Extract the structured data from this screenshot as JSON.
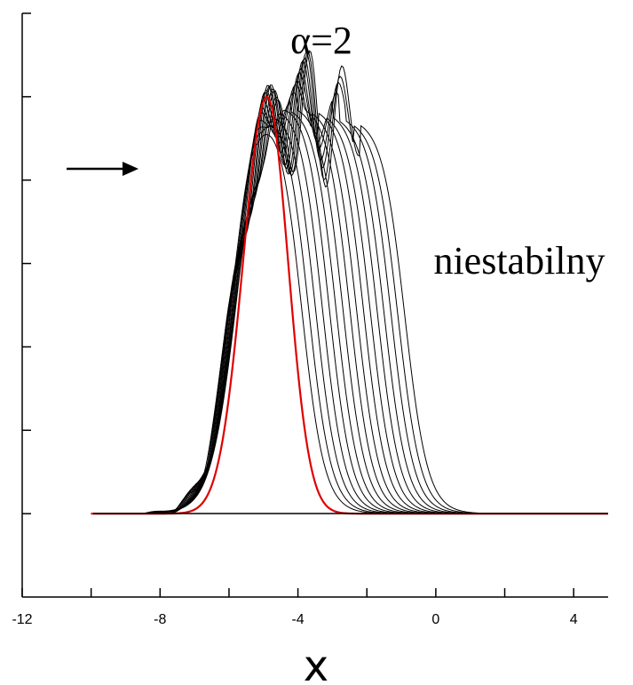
{
  "chart_data": {
    "type": "line",
    "title": "α=2",
    "annotation": "niestabilny",
    "xlabel": "x",
    "ylabel": "",
    "xlim": [
      -12,
      5
    ],
    "ylim": [
      -0.2,
      1.2
    ],
    "x_ticks": [
      -12,
      -10,
      -8,
      -6,
      -4,
      -2,
      0,
      2,
      4
    ],
    "x_tick_labels": [
      "-12",
      "",
      "-8",
      "",
      "-4",
      "",
      "0",
      "",
      "4"
    ],
    "y_ticks": [
      0,
      0.2,
      0.4,
      0.6,
      0.8,
      1.0,
      1.2
    ],
    "y_tick_labels": [
      "",
      "",
      "",
      "",
      "",
      "",
      ""
    ],
    "arrow": {
      "direction": "right",
      "meaning": "propagation direction"
    },
    "initial_profile": {
      "color": "#e00000",
      "peak_x": -4.9,
      "peak_y": 1.0
    },
    "series": [
      {
        "peak_x": -4.9,
        "peak_y": 1.0,
        "osc_amplitude": 0.0,
        "color": "#e00000"
      },
      {
        "peak_x": -4.6,
        "peak_y": 1.0,
        "osc_amplitude": 0.02
      },
      {
        "peak_x": -4.4,
        "peak_y": 1.0,
        "osc_amplitude": 0.03
      },
      {
        "peak_x": -4.2,
        "peak_y": 1.0,
        "osc_amplitude": 0.04
      },
      {
        "peak_x": -4.0,
        "peak_y": 1.0,
        "osc_amplitude": 0.05
      },
      {
        "peak_x": -3.8,
        "peak_y": 1.0,
        "osc_amplitude": 0.06
      },
      {
        "peak_x": -3.6,
        "peak_y": 0.99,
        "osc_amplitude": 0.07
      },
      {
        "peak_x": -3.4,
        "peak_y": 0.99,
        "osc_amplitude": 0.08
      },
      {
        "peak_x": -3.2,
        "peak_y": 0.99,
        "osc_amplitude": 0.09
      },
      {
        "peak_x": -3.0,
        "peak_y": 0.98,
        "osc_amplitude": 0.1
      },
      {
        "peak_x": -2.8,
        "peak_y": 0.98,
        "osc_amplitude": 0.11
      },
      {
        "peak_x": -2.6,
        "peak_y": 0.97,
        "osc_amplitude": 0.12
      },
      {
        "peak_x": -2.4,
        "peak_y": 0.97,
        "osc_amplitude": 0.13
      },
      {
        "peak_x": -2.2,
        "peak_y": 0.96,
        "osc_amplitude": 0.14
      },
      {
        "peak_x": -2.0,
        "peak_y": 0.96,
        "osc_amplitude": 0.15
      },
      {
        "peak_x": -1.8,
        "peak_y": 0.95,
        "osc_amplitude": 0.16
      },
      {
        "peak_x": -1.6,
        "peak_y": 0.95,
        "osc_amplitude": 0.17
      }
    ]
  }
}
